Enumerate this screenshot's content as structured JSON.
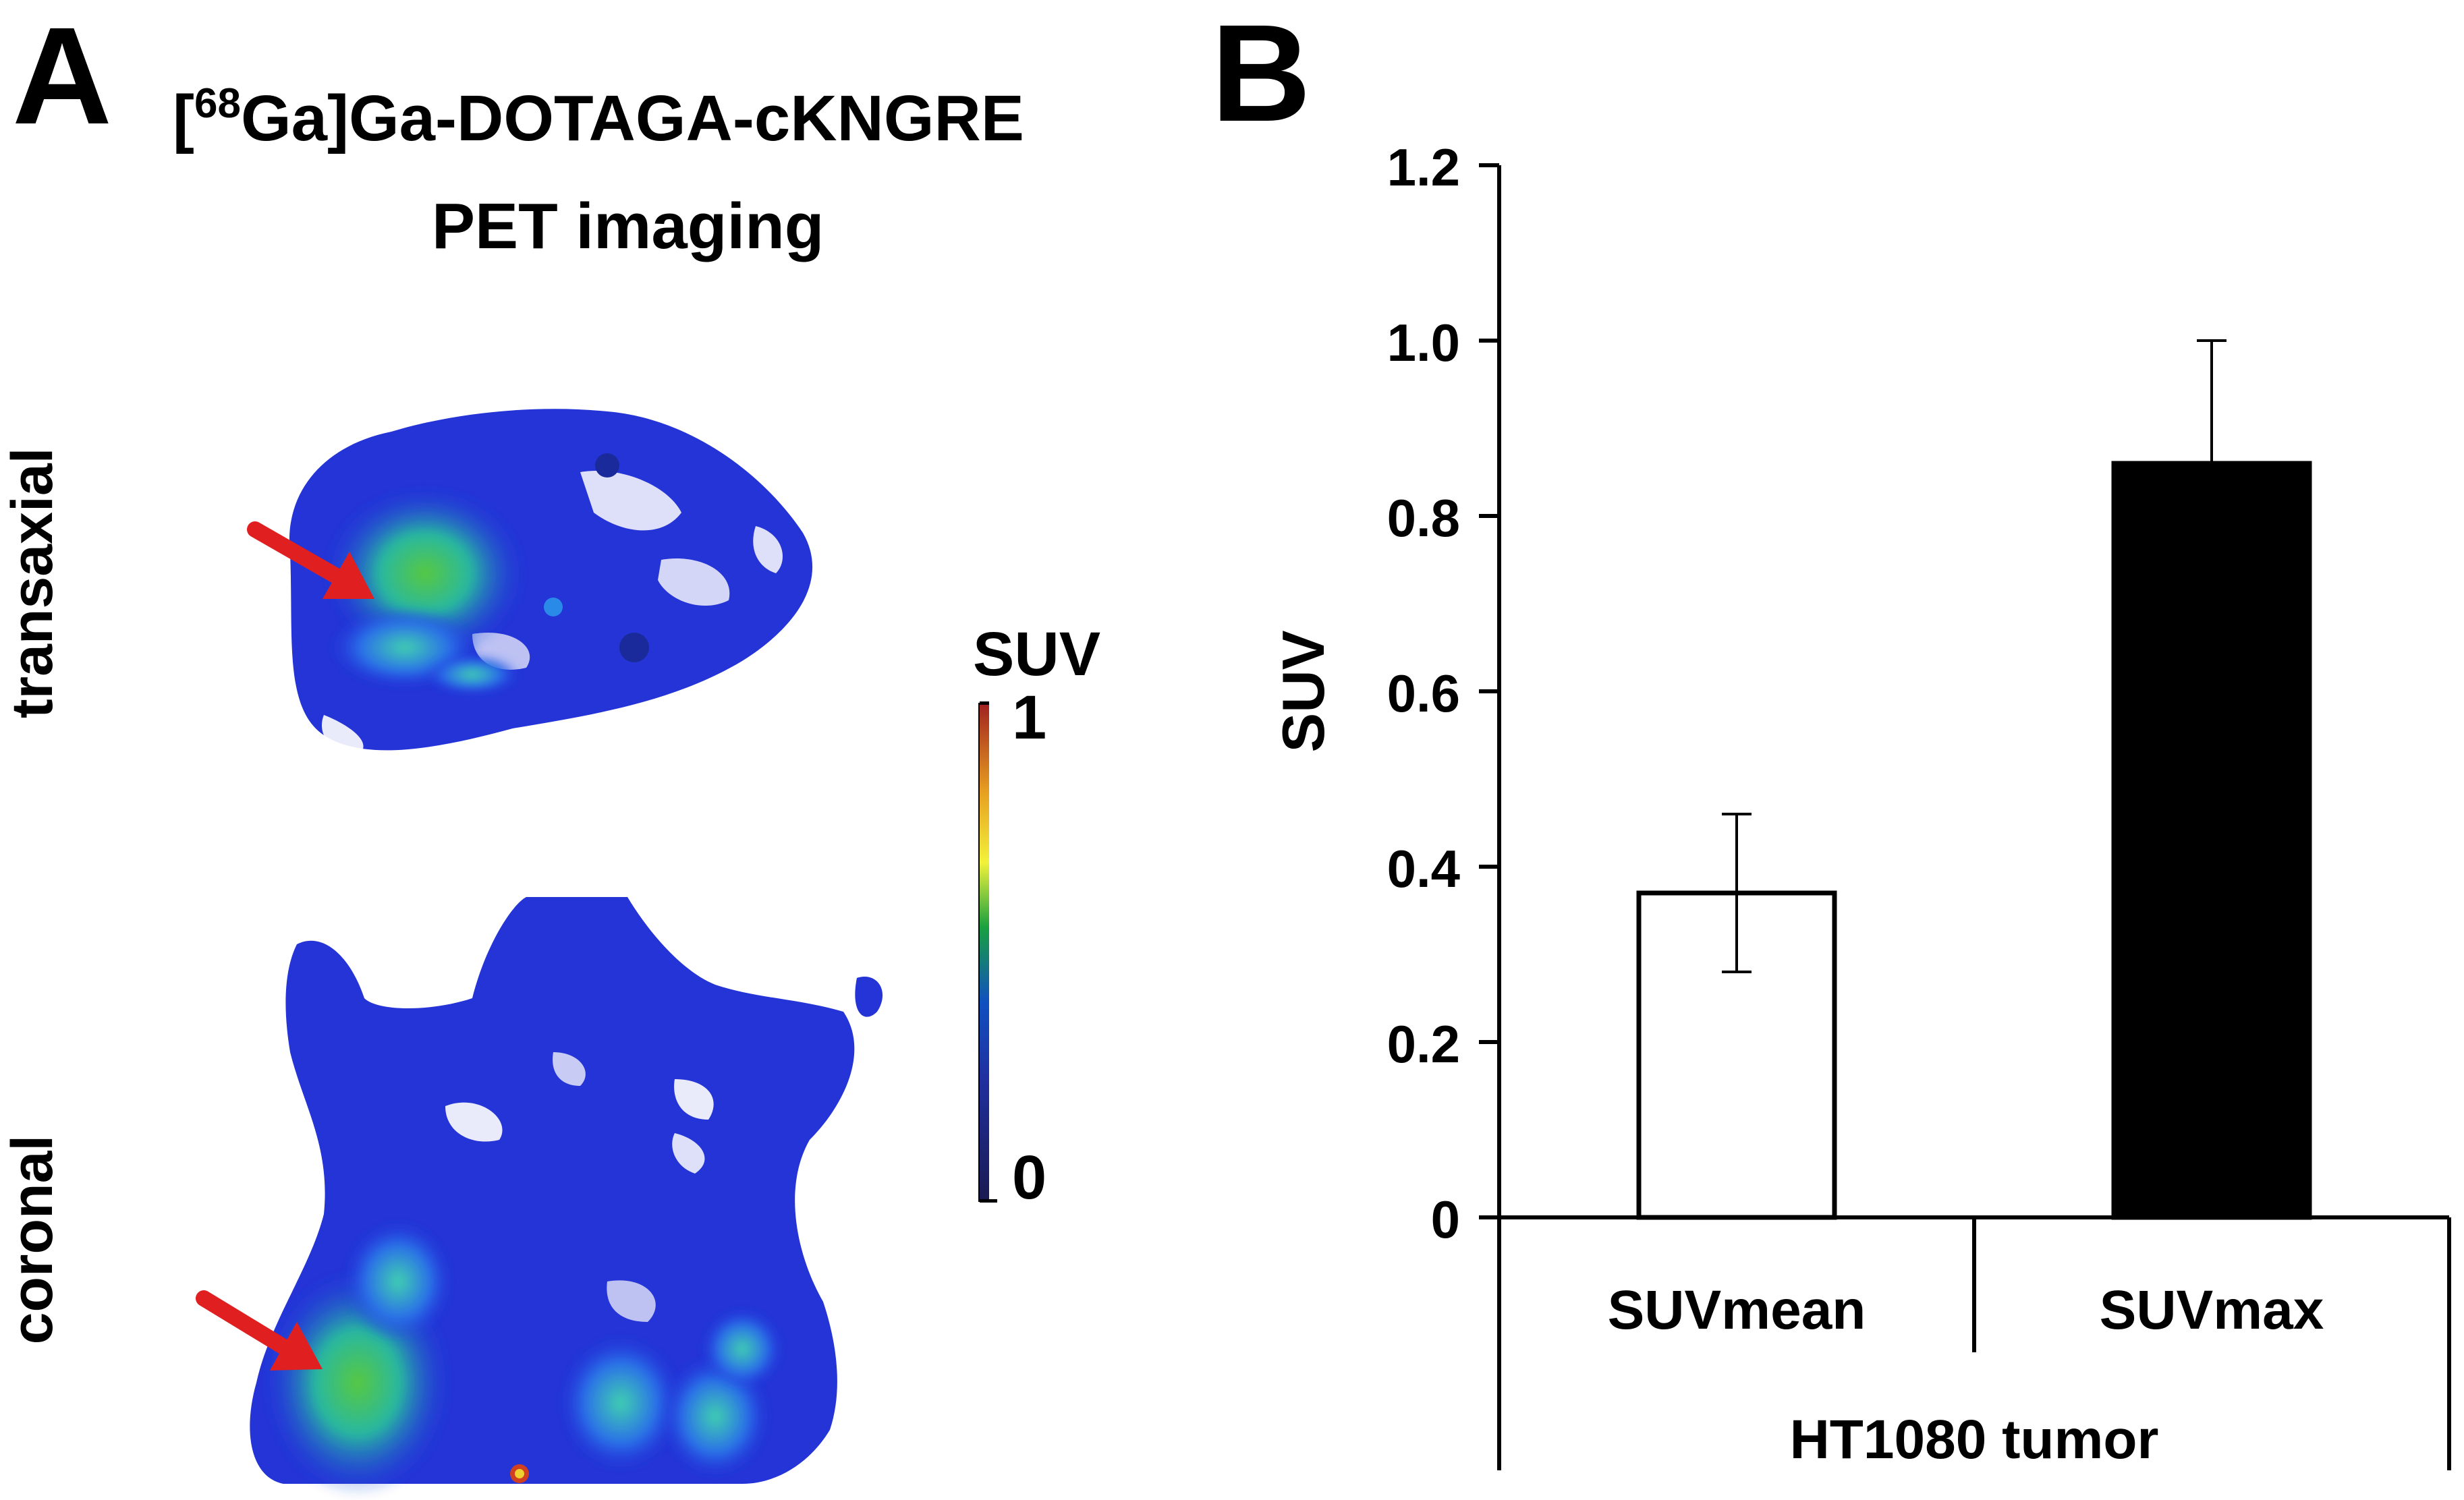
{
  "panel_a": {
    "letter": "A",
    "title_prefix": "[",
    "title_sup": "68",
    "title_rest": "Ga]Ga-DOTAGA-cKNGRE",
    "subtitle": "PET imaging",
    "view_labels": [
      "transaxial",
      "coronal"
    ],
    "colorbar": {
      "title": "SUV",
      "max_label": "1",
      "min_label": "0"
    },
    "arrow_color": "#e02020"
  },
  "panel_b": {
    "letter": "B"
  },
  "chart_data": {
    "type": "bar",
    "title": "",
    "xlabel": "HT1080 tumor",
    "ylabel": "SUV",
    "ylim": [
      0,
      1.2
    ],
    "yticks": [
      "0",
      "0.2",
      "0.4",
      "0.6",
      "0.8",
      "1.0",
      "1.2"
    ],
    "ytick_values": [
      0,
      0.2,
      0.4,
      0.6,
      0.8,
      1.0,
      1.2
    ],
    "categories": [
      "SUVmean",
      "SUVmax"
    ],
    "values": [
      0.37,
      0.86
    ],
    "errors": [
      0.09,
      0.14
    ],
    "bar_colors": [
      "#ffffff",
      "#000000"
    ],
    "grid": false
  }
}
